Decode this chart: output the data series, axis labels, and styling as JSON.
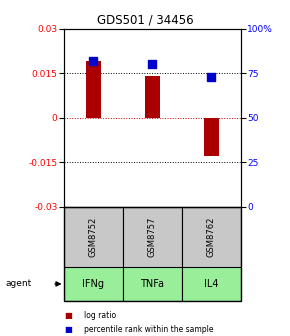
{
  "title": "GDS501 / 34456",
  "categories": [
    "IFNg",
    "TNFa",
    "IL4"
  ],
  "gsm_labels": [
    "GSM8752",
    "GSM8757",
    "GSM8762"
  ],
  "log_ratios": [
    0.019,
    0.014,
    -0.013
  ],
  "percentile_ranks": [
    82,
    80,
    73
  ],
  "ylim_left": [
    -0.03,
    0.03
  ],
  "ylim_right": [
    0,
    100
  ],
  "yticks_left": [
    -0.03,
    -0.015,
    0,
    0.015,
    0.03
  ],
  "ytick_labels_left": [
    "-0.03",
    "-0.015",
    "0",
    "0.015",
    "0.03"
  ],
  "yticks_right": [
    0,
    25,
    50,
    75,
    100
  ],
  "ytick_labels_right": [
    "0",
    "25",
    "50",
    "75",
    "100%"
  ],
  "bar_color": "#aa0000",
  "dot_color": "#0000cc",
  "bar_width": 0.25,
  "dot_size": 30,
  "agent_label": "agent",
  "legend_items": [
    "log ratio",
    "percentile rank within the sample"
  ],
  "gsm_bg": "#c8c8c8",
  "agent_bg_color": "#99ee99",
  "zero_line_color": "#cc0000",
  "title_fontsize": 8.5
}
